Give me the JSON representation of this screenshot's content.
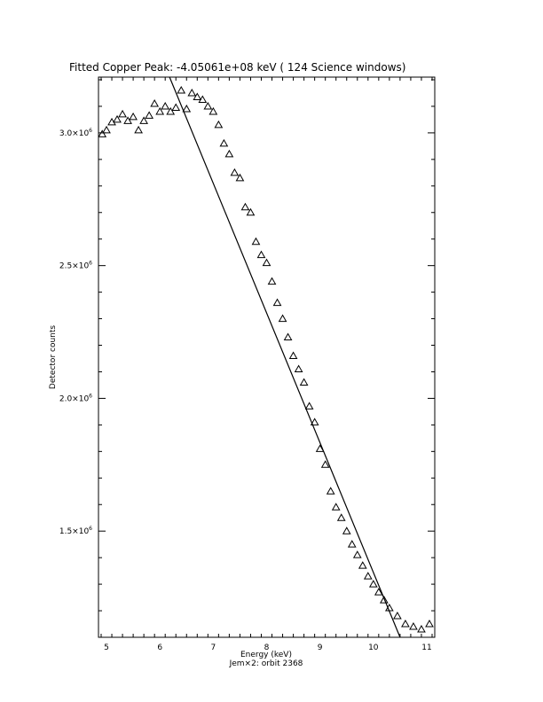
{
  "chart_data": {
    "type": "scatter",
    "title": "Fitted Copper Peak:  -4.05061e+08 keV (          124 Science windows)",
    "xlabel": "Energy (keV)",
    "subtitle": "Jem×2: orbit 2368",
    "ylabel": "Detector counts",
    "xlim": [
      4.85,
      11.15
    ],
    "ylim": [
      1100000,
      3210000
    ],
    "x_ticks": [
      5,
      6,
      7,
      8,
      9,
      10,
      11
    ],
    "x_tick_labels": [
      "5",
      "6",
      "7",
      "8",
      "9",
      "10",
      "11"
    ],
    "y_ticks": [
      1500000,
      2000000,
      2500000,
      3000000
    ],
    "y_tick_mantissa": [
      "1.5×10",
      "2.0×10",
      "2.5×10",
      "3.0×10"
    ],
    "y_tick_exponent": "6",
    "grid": false,
    "series": [
      {
        "marker": "triangle",
        "x": [
          4.92,
          5.0,
          5.1,
          5.2,
          5.3,
          5.4,
          5.5,
          5.6,
          5.7,
          5.8,
          5.9,
          6.0,
          6.1,
          6.2,
          6.3,
          6.4,
          6.5,
          6.6,
          6.7,
          6.8,
          6.9,
          7.0,
          7.1,
          7.2,
          7.3,
          7.4,
          7.5,
          7.6,
          7.7,
          7.8,
          7.9,
          8.0,
          8.1,
          8.2,
          8.3,
          8.4,
          8.5,
          8.6,
          8.7,
          8.8,
          8.9,
          9.0,
          9.1,
          9.2,
          9.3,
          9.4,
          9.5,
          9.6,
          9.7,
          9.8,
          9.9,
          10.0,
          10.1,
          10.2,
          10.3,
          10.45,
          10.6,
          10.75,
          10.9,
          11.05
        ],
        "y": [
          2995000,
          3010000,
          3040000,
          3050000,
          3070000,
          3045000,
          3060000,
          3010000,
          3045000,
          3065000,
          3110000,
          3080000,
          3100000,
          3080000,
          3095000,
          3160000,
          3090000,
          3150000,
          3135000,
          3125000,
          3100000,
          3080000,
          3030000,
          2960000,
          2920000,
          2850000,
          2830000,
          2720000,
          2700000,
          2590000,
          2540000,
          2510000,
          2440000,
          2360000,
          2300000,
          2230000,
          2160000,
          2110000,
          2060000,
          1970000,
          1910000,
          1810000,
          1750000,
          1650000,
          1590000,
          1550000,
          1500000,
          1450000,
          1410000,
          1370000,
          1330000,
          1300000,
          1270000,
          1240000,
          1210000,
          1180000,
          1150000,
          1140000,
          1130000,
          1150000
        ]
      },
      {
        "marker": "line",
        "x": [
          6.1,
          10.5
        ],
        "y": [
          3250000,
          1100000
        ]
      }
    ]
  }
}
